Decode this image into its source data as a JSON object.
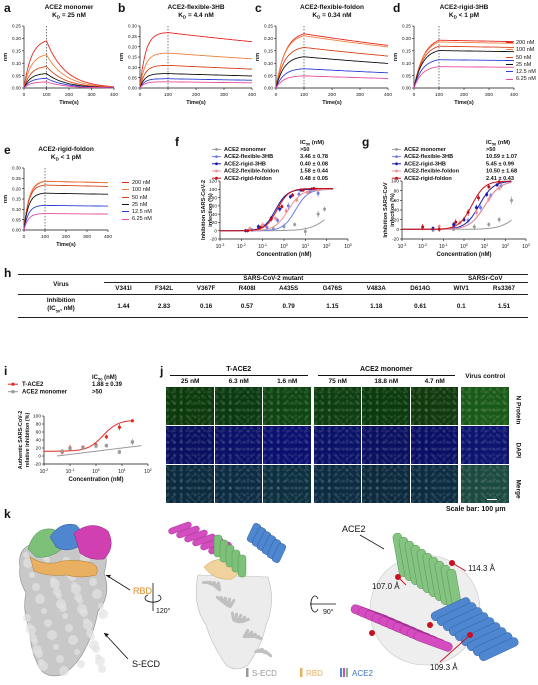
{
  "panel_labels": [
    "a",
    "b",
    "c",
    "d",
    "e",
    "f",
    "g",
    "h",
    "i",
    "j",
    "k"
  ],
  "kinetics": {
    "time_label": "Time(s)",
    "y_label": "nm",
    "x_ticks": [
      "0",
      "100",
      "200",
      "300",
      "400"
    ],
    "panels": [
      {
        "title": "ACE2 monomer",
        "kd": "K_D = 25 nM",
        "kd_parts": [
          "K",
          "D",
          " = 25 nM"
        ],
        "y_ticks": [
          "0.00",
          "0.05",
          "0.10",
          "0.15",
          "0.20",
          "0.25"
        ]
      },
      {
        "title": "ACE2-flexible-3HB",
        "kd_parts": [
          "K",
          "D",
          " = 4.4 nM"
        ],
        "y_ticks": [
          "0.00",
          "0.05",
          "0.10",
          "0.15",
          "0.20",
          "0.25",
          "0.30"
        ]
      },
      {
        "title": "ACE2-flexible-foldon",
        "kd_parts": [
          "K",
          "D",
          " = 0.34 nM"
        ],
        "y_ticks": [
          "0.00",
          "0.05",
          "0.10",
          "0.15",
          "0.20",
          "0.25"
        ]
      },
      {
        "title": "ACE2-rigid-3HB",
        "kd_parts": [
          "K",
          "D",
          " < 1 pM"
        ],
        "y_ticks": [
          "0.00",
          "0.05",
          "0.10",
          "0.15",
          "0.20",
          "0.25"
        ]
      },
      {
        "title": "ACE2-rigid-foldon",
        "kd_parts": [
          "K",
          "D",
          " < 1 pM"
        ],
        "y_ticks": [
          "0.00",
          "0.05",
          "0.10",
          "0.15",
          "0.20",
          "0.25",
          "0.30"
        ]
      }
    ],
    "concentrations": [
      "200 nM",
      "100 nM",
      "50 nM",
      "25 nM",
      "12.5 nM",
      "6.25 nM"
    ],
    "colors": [
      "#e8271f",
      "#f08040",
      "#d9431a",
      "#111111",
      "#2d3fd6",
      "#e94ba0"
    ]
  },
  "neutralization_f": {
    "ylabel": "Inhibition SARS-CoV-2 infection (%)",
    "xlabel": "Concentration (nM)",
    "ic50_header": "IC50 (nM)",
    "y_ticks": [
      "-20",
      "0",
      "20",
      "40",
      "60",
      "80",
      "100",
      "120"
    ],
    "x_ticks": [
      "10-3",
      "10-2",
      "10-1",
      "100",
      "101",
      "102",
      "103"
    ],
    "legend": [
      {
        "name": "ACE2 monomer",
        "ic50": ">50",
        "color": "#9a9a9a"
      },
      {
        "name": "ACE2-flexible-3HB",
        "ic50": "3.46 ± 0.78",
        "color": "#6b7de8"
      },
      {
        "name": "ACE2-rigid-3HB",
        "ic50": "0.40 ± 0.08",
        "color": "#1a1aa8"
      },
      {
        "name": "ACE2-flexible-foldon",
        "ic50": "1.58 ± 0.44",
        "color": "#f08f8f"
      },
      {
        "name": "ACE2-rigid-foldon",
        "ic50": "0.48 ± 0.05",
        "color": "#c51018"
      }
    ]
  },
  "neutralization_g": {
    "ylabel": "Inhibition SARS-CoV infection (%)",
    "xlabel": "Concentration (nM)",
    "ic50_header": "IC50 (nM)",
    "y_ticks": [
      "-20",
      "0",
      "20",
      "40",
      "60",
      "80",
      "100"
    ],
    "x_ticks": [
      "10-3",
      "10-2",
      "10-1",
      "100",
      "101",
      "102",
      "103"
    ],
    "legend": [
      {
        "name": "ACE2 monomer",
        "ic50": ">50",
        "color": "#9a9a9a"
      },
      {
        "name": "ACE2-flexible-3HB",
        "ic50": "10.59 ± 1.07",
        "color": "#6b7de8"
      },
      {
        "name": "ACE2-rigid-3HB",
        "ic50": "5.45 ± 0.99",
        "color": "#1a1aa8"
      },
      {
        "name": "ACE2-flexible-foldon",
        "ic50": "10.50 ± 1.68",
        "color": "#f08f8f"
      },
      {
        "name": "ACE2-rigid-foldon",
        "ic50": "2.41 ± 0.43",
        "color": "#c51018"
      }
    ]
  },
  "table_h": {
    "virus_label": "Virus",
    "group1": "SARS-CoV-2 mutant",
    "group2": "SARSr-CoV",
    "row_label": "Inhibition",
    "row_unit": "(IC50, nM)",
    "columns": [
      "V341I",
      "F342L",
      "V367F",
      "R408I",
      "A435S",
      "G476S",
      "V483A",
      "D614G",
      "WIV1",
      "Rs3367"
    ],
    "values": [
      "1.44",
      "2.83",
      "0.16",
      "0.57",
      "0.79",
      "1.15",
      "1.18",
      "0.61",
      "0.1",
      "1.51"
    ]
  },
  "authentic_i": {
    "ylabel": "Authentic SARS-CoV-2 relative inhibition (%)",
    "xlabel": "Concentration (nM)",
    "ic50_header": "IC50 (nM)",
    "y_ticks": [
      "-20",
      "0",
      "20",
      "40",
      "60",
      "80",
      "100"
    ],
    "x_ticks": [
      "10-2",
      "10-1",
      "100",
      "101",
      "102"
    ],
    "legend": [
      {
        "name": "T-ACE2",
        "ic50": "1.88 ± 0.39",
        "color": "#e8271f"
      },
      {
        "name": "ACE2 monomer",
        "ic50": ">50",
        "color": "#9a9a9a"
      }
    ]
  },
  "micro_j": {
    "group1": "T-ACE2",
    "group2": "ACE2 monomer",
    "group3": "Virus control",
    "concs": [
      "25 nM",
      "6.3 nM",
      "1.6 nM",
      "75 nM",
      "18.8 nM",
      "4.7 nM"
    ],
    "rows": [
      "N Protein",
      "DAPI",
      "Merge"
    ],
    "scale_bar": "Scale bar: 100 μm"
  },
  "structure_k": {
    "rbd": "RBD",
    "secd": "S-ECD",
    "ace2": "ACE2",
    "rot1": "120°",
    "rot2": "90°",
    "dist1": "107.0 Å",
    "dist2": "114.3 Å",
    "dist3": "109.3 Å",
    "legend": [
      {
        "name": "S-ECD",
        "color": "#999999"
      },
      {
        "name": "RBD",
        "color": "#e8b060"
      },
      {
        "name": "ACE2",
        "color": "#3a6fd0"
      }
    ]
  }
}
